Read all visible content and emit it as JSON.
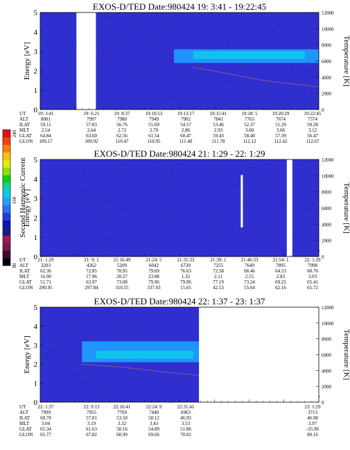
{
  "colorbar": {
    "label": "Second Harmonic Current",
    "ticks": [
      "80",
      "160",
      "240"
    ],
    "colors": [
      "#000000",
      "#3a0a3a",
      "#7a1a4a",
      "#9a1a5a",
      "#1a1a8a",
      "#1010b8",
      "#1f3fe0",
      "#2f6ff0",
      "#1fa0ff",
      "#10c8e8",
      "#10d0a0",
      "#10d010",
      "#90e010",
      "#e8e810",
      "#f8c010",
      "#f88010",
      "#f04010",
      "#e01010"
    ]
  },
  "panels": [
    {
      "title": "EXOS-D/TED   Date:980424  19: 3:41 - 19:22:45",
      "ylabel": "Energy [eV]",
      "y2label": "Temperature [K]",
      "yticks": [
        "0",
        "1",
        "2",
        "3",
        "4",
        "5"
      ],
      "y2ticks": [
        "0",
        "2000",
        "4000",
        "6000",
        "8000",
        "10000",
        "12000"
      ],
      "rows": [
        {
          "name": "UT",
          "values": [
            "19: 3:41",
            "19: 6:21",
            "19: 8:37",
            "19:10:53",
            "19:13:17",
            "19:15:41",
            "19:18: 5",
            "19:20:29",
            "19:22:45"
          ]
        },
        {
          "name": "ALT",
          "values": [
            "8001",
            "7997",
            "7980",
            "7949",
            "7902",
            "7841",
            "7765",
            "7674",
            "7574"
          ]
        },
        {
          "name": "ILAT",
          "values": [
            "59.11",
            "57.83",
            "56.76",
            "55.69",
            "54.57",
            "53.46",
            "52.37",
            "51.29",
            "50.28"
          ]
        },
        {
          "name": "MLT",
          "values": [
            "2.54",
            "2.64",
            "2.72",
            "2.79",
            "2.86",
            "2.93",
            "3.00",
            "3.06",
            "3.12"
          ]
        },
        {
          "name": "GLAT",
          "values": [
            "64.84",
            "63.60",
            "62.56",
            "61.54",
            "60.47",
            "59.43",
            "58.40",
            "57.39",
            "56.47"
          ]
        },
        {
          "name": "GLON",
          "values": [
            "109.17",
            "109.92",
            "110.47",
            "110.95",
            "111.40",
            "111.78",
            "112.12",
            "112.42",
            "112.67"
          ]
        }
      ]
    },
    {
      "title": "EXOS-D/TED   Date:980424  21: 1:29 - 22: 1:29",
      "ylabel": "Energy [eV]",
      "y2label": "Temperature [K]",
      "yticks": [
        "0",
        "1",
        "2",
        "3",
        "4",
        "5"
      ],
      "y2ticks": [
        "0",
        "2000",
        "4000",
        "6000",
        "8000",
        "10000",
        "12000"
      ],
      "rows": [
        {
          "name": "UT",
          "values": [
            "21: 1:29",
            "21: 9: 1",
            "21:16:49",
            "21:24: 5",
            "21:31:33",
            "21:39: 1",
            "21:46:33",
            "21:54: 1",
            "22: 1:29"
          ]
        },
        {
          "name": "ALT",
          "values": [
            "3203",
            "4262",
            "5209",
            "6042",
            "6720",
            "7255",
            "7649",
            "7895",
            "7998"
          ]
        },
        {
          "name": "ILAT",
          "values": [
            "62.36",
            "72.85",
            "78.95",
            "79.69",
            "76.63",
            "72.58",
            "68.46",
            "64.53",
            "60.76"
          ]
        },
        {
          "name": "MLT",
          "values": [
            "16.90",
            "17.96",
            "20.27",
            "23.88",
            "1.32",
            "2.11",
            "2.55",
            "2.83",
            "3.03"
          ]
        },
        {
          "name": "GLAT",
          "values": [
            "51.71",
            "63.97",
            "73.08",
            "79.96",
            "79.96",
            "77.19",
            "73.24",
            "69.25",
            "65.41"
          ]
        },
        {
          "name": "GLON",
          "values": [
            "290.95",
            "297.84",
            "310.55",
            "337.03",
            "15.65",
            "42.53",
            "55.64",
            "62.16",
            "65.72"
          ]
        }
      ]
    },
    {
      "title": "EXOS-D/TED   Date:980424  22: 1:37 - 23: 1:37",
      "ylabel": "Energy [eV]",
      "y2label": "Temperature [K]",
      "yticks": [
        "0",
        "1",
        "2",
        "3",
        "4",
        "5"
      ],
      "y2ticks": [
        "0",
        "2000",
        "4000",
        "6000",
        "8000",
        "10000",
        "12000"
      ],
      "rows": [
        {
          "name": "UT",
          "values": [
            "22: 1:37",
            "22: 9:13",
            "22:16:41",
            "22:24: 9",
            "22:31:41",
            "",
            "",
            "",
            "23: 1:29"
          ]
        },
        {
          "name": "ALT",
          "values": [
            "7999",
            "7955",
            "7769",
            "7440",
            "6963",
            "",
            "",
            "",
            "3713"
          ]
        },
        {
          "name": "ILAT",
          "values": [
            "60.70",
            "57.01",
            "53.50",
            "50.12",
            "46.93",
            "",
            "",
            "",
            "46.98"
          ]
        },
        {
          "name": "MLT",
          "values": [
            "3.04",
            "3.19",
            "3.32",
            "3.43",
            "3.53",
            "",
            "",
            "",
            "3.97"
          ]
        },
        {
          "name": "GLAT",
          "values": [
            "65.34",
            "61.63",
            "58.16",
            "54.89",
            "51.86",
            "",
            "",
            "",
            "-35.96"
          ]
        },
        {
          "name": "GLON",
          "values": [
            "65.77",
            "67.82",
            "68.99",
            "69.66",
            "70.02",
            "",
            "",
            "",
            "80.16"
          ]
        }
      ]
    }
  ],
  "chart_data": [
    {
      "type": "heatmap",
      "title": "EXOS-D/TED   Date:980424  19: 3:41 - 19:22:45",
      "ylabel": "Energy [eV]",
      "ylim": [
        0,
        5
      ],
      "y2label": "Temperature [K]",
      "y2lim": [
        0,
        12000
      ],
      "background_color": "#2f2fd0",
      "data_gaps": [
        {
          "x_range_fraction": [
            0.13,
            0.2
          ],
          "y_range": [
            0,
            5
          ]
        }
      ],
      "bands": [
        {
          "x_range_fraction": [
            0.48,
            1.0
          ],
          "energy_range": [
            2.4,
            3.1
          ],
          "color": "#1fa0ff"
        },
        {
          "x_range_fraction": [
            0.55,
            0.95
          ],
          "energy_range": [
            2.6,
            3.0
          ],
          "color": "#10c8e8"
        }
      ],
      "temperature_trace": [
        {
          "x_fraction": 0.55,
          "T": 5200
        },
        {
          "x_fraction": 0.65,
          "T": 4600
        },
        {
          "x_fraction": 0.8,
          "T": 3600
        },
        {
          "x_fraction": 1.0,
          "T": 2800
        }
      ]
    },
    {
      "type": "heatmap",
      "title": "EXOS-D/TED   Date:980424  21: 1:29 - 22: 1:29",
      "ylabel": "Energy [eV]",
      "ylim": [
        0,
        5
      ],
      "y2label": "Temperature [K]",
      "y2lim": [
        0,
        12000
      ],
      "background_color": "#2f2fd0",
      "data_gaps": [
        {
          "x_range_fraction": [
            0.885,
            0.905
          ],
          "y_range": [
            0,
            5
          ]
        }
      ],
      "bands": [],
      "features": [
        {
          "x_fraction": 0.72,
          "energy_range": [
            1.5,
            4.2
          ],
          "description_color": "#ffffff"
        }
      ]
    },
    {
      "type": "heatmap",
      "title": "EXOS-D/TED   Date:980424  22: 1:37 - 23: 1:37",
      "ylabel": "Energy [eV]",
      "ylim": [
        0,
        5
      ],
      "y2label": "Temperature [K]",
      "y2lim": [
        0,
        12000
      ],
      "background_color": "#2f2fd0",
      "data_gaps": [
        {
          "x_range_fraction": [
            0.57,
            1.0
          ],
          "y_range": [
            0,
            5
          ]
        }
      ],
      "bands": [
        {
          "x_range_fraction": [
            0.15,
            0.57
          ],
          "energy_range": [
            2.1,
            3.2
          ],
          "color": "#1fa0ff"
        },
        {
          "x_range_fraction": [
            0.2,
            0.55
          ],
          "energy_range": [
            2.3,
            2.7
          ],
          "color": "#10c8e8"
        }
      ],
      "temperature_trace": [
        {
          "x_fraction": 0.15,
          "T": 4800
        },
        {
          "x_fraction": 0.3,
          "T": 4400
        },
        {
          "x_fraction": 0.45,
          "T": 3800
        },
        {
          "x_fraction": 0.57,
          "T": 3400
        }
      ]
    }
  ]
}
